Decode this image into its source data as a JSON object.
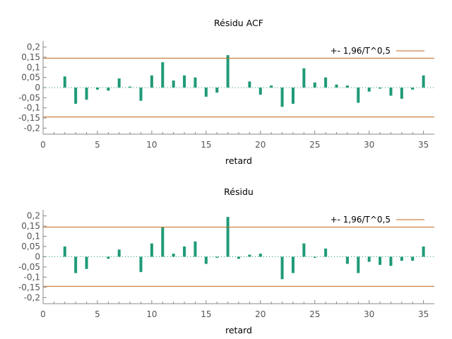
{
  "chart_data": [
    {
      "type": "bar",
      "title": "Résidu ACF",
      "xlabel": "retard",
      "ylabel": "",
      "xlim": [
        0,
        36
      ],
      "ylim": [
        -0.23,
        0.23
      ],
      "xticks": [
        0,
        5,
        10,
        15,
        20,
        25,
        30,
        35
      ],
      "xtick_labels": [
        "0",
        "5",
        "10",
        "15",
        "20",
        "25",
        "30",
        "35"
      ],
      "yticks": [
        0.2,
        0.15,
        0.1,
        0.05,
        0,
        -0.05,
        -0.1,
        -0.15,
        -0.2
      ],
      "ytick_labels": [
        "0,2",
        "0,15",
        "0,1",
        "0,05",
        "0",
        "-0,05",
        "-0,1",
        "-0,15",
        "-0,2"
      ],
      "x": [
        1,
        2,
        3,
        4,
        5,
        6,
        7,
        8,
        9,
        10,
        11,
        12,
        13,
        14,
        15,
        16,
        17,
        18,
        19,
        20,
        21,
        22,
        23,
        24,
        25,
        26,
        27,
        28,
        29,
        30,
        31,
        32,
        33,
        34,
        35
      ],
      "values": [
        0.0,
        0.055,
        -0.08,
        -0.06,
        -0.01,
        -0.015,
        0.045,
        0.005,
        -0.065,
        0.06,
        0.125,
        0.035,
        0.06,
        0.05,
        -0.045,
        -0.025,
        0.16,
        0.0,
        0.03,
        -0.035,
        0.01,
        -0.095,
        -0.08,
        0.095,
        0.025,
        0.05,
        0.015,
        0.01,
        -0.075,
        -0.02,
        -0.005,
        -0.04,
        -0.055,
        -0.01,
        0.06
      ],
      "bound": 0.145,
      "legend": {
        "label": "+- 1,96/T^0,5",
        "position": "top-right"
      },
      "grid": false,
      "bar_color": "#1f9a78",
      "bound_color": "#c0661e"
    },
    {
      "type": "bar",
      "title": "Résidu",
      "xlabel": "retard",
      "ylabel": "",
      "xlim": [
        0,
        36
      ],
      "ylim": [
        -0.23,
        0.23
      ],
      "xticks": [
        0,
        5,
        10,
        15,
        20,
        25,
        30,
        35
      ],
      "xtick_labels": [
        "0",
        "5",
        "10",
        "15",
        "20",
        "25",
        "30",
        "35"
      ],
      "yticks": [
        0.2,
        0.15,
        0.1,
        0.05,
        0,
        -0.05,
        -0.1,
        -0.15,
        -0.2
      ],
      "ytick_labels": [
        "0,2",
        "0,15",
        "0,1",
        "0,05",
        "0",
        "-0,05",
        "-0,1",
        "-0,15",
        "-0,2"
      ],
      "x": [
        1,
        2,
        3,
        4,
        5,
        6,
        7,
        8,
        9,
        10,
        11,
        12,
        13,
        14,
        15,
        16,
        17,
        18,
        19,
        20,
        21,
        22,
        23,
        24,
        25,
        26,
        27,
        28,
        29,
        30,
        31,
        32,
        33,
        34,
        35
      ],
      "values": [
        0.0,
        0.05,
        -0.08,
        -0.06,
        0.0,
        -0.01,
        0.035,
        0.0,
        -0.075,
        0.065,
        0.145,
        0.015,
        0.05,
        0.075,
        -0.035,
        -0.005,
        0.195,
        -0.01,
        0.01,
        0.015,
        0.0,
        -0.11,
        -0.08,
        0.065,
        -0.005,
        0.04,
        0.0,
        -0.035,
        -0.08,
        -0.025,
        -0.04,
        -0.045,
        -0.02,
        -0.02,
        0.05
      ],
      "bound": 0.145,
      "legend": {
        "label": "+- 1,96/T^0,5",
        "position": "top-right"
      },
      "grid": false,
      "bar_color": "#1f9a78",
      "bound_color": "#c0661e"
    }
  ]
}
